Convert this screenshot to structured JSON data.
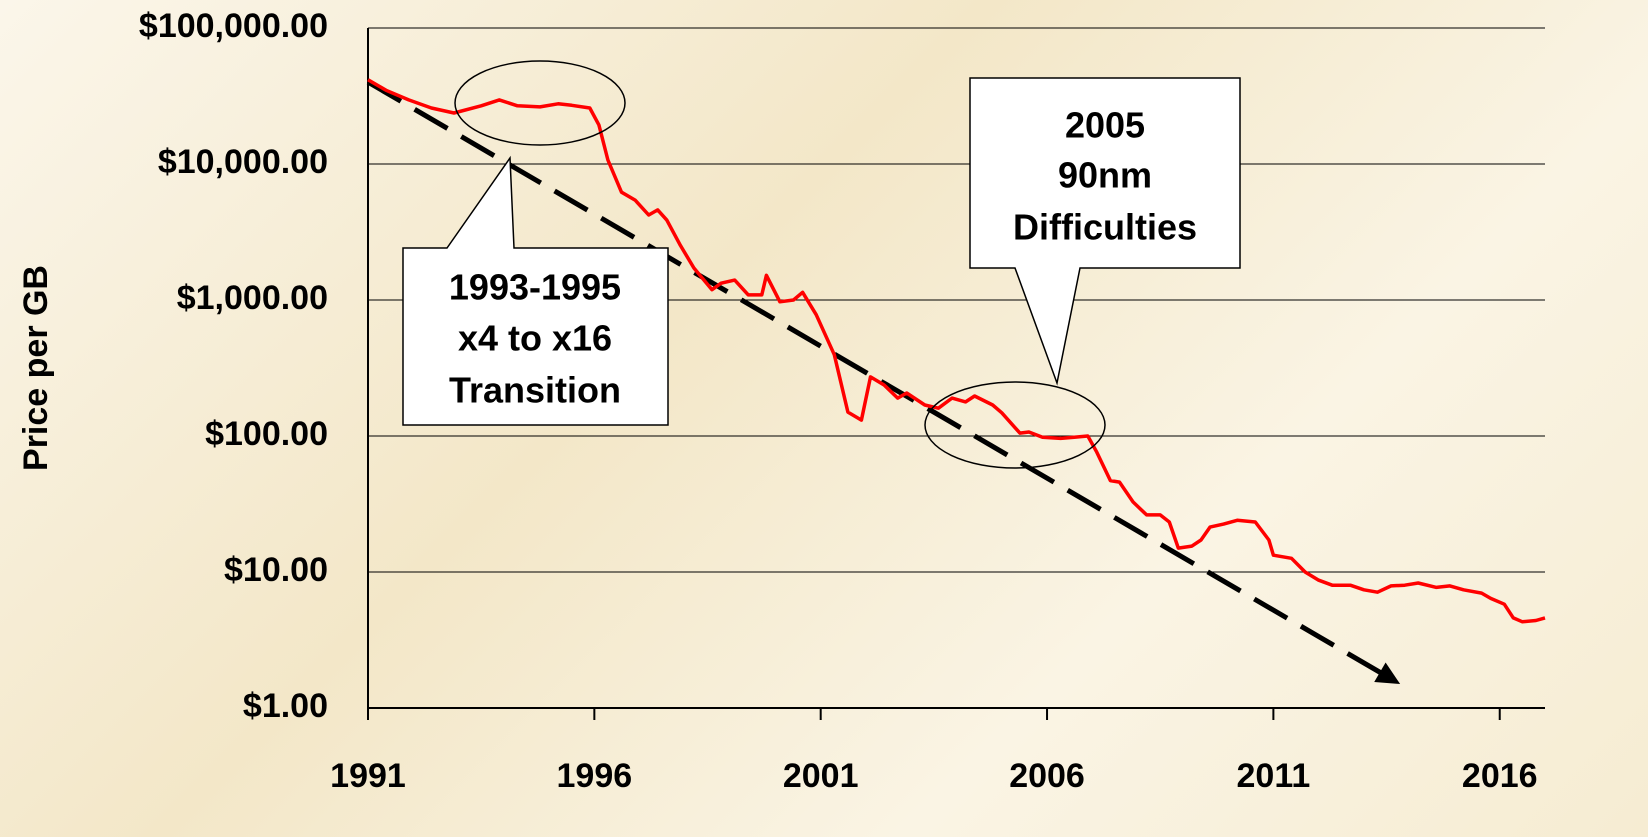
{
  "chart_data": {
    "type": "line",
    "ylabel": "Price per GB",
    "yscale": "log",
    "grid": true,
    "xlim": [
      1991,
      2017
    ],
    "ylim": [
      1,
      100000
    ],
    "xticks": [
      1991,
      1996,
      2001,
      2006,
      2011,
      2016
    ],
    "yticks": [
      {
        "value": 1,
        "label": "$1.00"
      },
      {
        "value": 10,
        "label": "$10.00"
      },
      {
        "value": 100,
        "label": "$100.00"
      },
      {
        "value": 1000,
        "label": "$1,000.00"
      },
      {
        "value": 10000,
        "label": "$10,000.00"
      },
      {
        "value": 100000,
        "label": "$100,000.00"
      }
    ],
    "x": [
      1991.0,
      1991.4,
      1991.9,
      1992.4,
      1992.9,
      1993.5,
      1993.9,
      1994.3,
      1994.8,
      1995.2,
      1995.5,
      1995.9,
      1996.1,
      1996.3,
      1996.6,
      1996.9,
      1997.2,
      1997.4,
      1997.6,
      1997.9,
      1998.2,
      1998.6,
      1998.8,
      1999.1,
      1999.4,
      1999.7,
      1999.8,
      2000.1,
      2000.4,
      2000.6,
      2000.9,
      2001.3,
      2001.6,
      2001.9,
      2002.1,
      2002.4,
      2002.7,
      2002.9,
      2003.3,
      2003.6,
      2003.9,
      2004.2,
      2004.4,
      2004.8,
      2005.0,
      2005.4,
      2005.6,
      2005.9,
      2006.3,
      2006.6,
      2006.9,
      2007.1,
      2007.4,
      2007.6,
      2007.9,
      2008.2,
      2008.5,
      2008.7,
      2008.9,
      2009.2,
      2009.4,
      2009.6,
      2009.9,
      2010.2,
      2010.6,
      2010.9,
      2011.0,
      2011.4,
      2011.7,
      2012.0,
      2012.3,
      2012.7,
      2013.0,
      2013.3,
      2013.6,
      2013.9,
      2014.2,
      2014.6,
      2014.9,
      2015.2,
      2015.6,
      2015.8,
      2016.1,
      2016.3,
      2016.5,
      2016.8,
      2017.0
    ],
    "series": [
      {
        "color": "#ff0000",
        "values": [
          41700,
          34800,
          29600,
          25800,
          23700,
          26800,
          29600,
          26800,
          26300,
          27700,
          27000,
          25800,
          19400,
          10700,
          6200,
          5430,
          4220,
          4600,
          3870,
          2520,
          1720,
          1190,
          1330,
          1400,
          1090,
          1090,
          1520,
          970,
          1000,
          1140,
          780,
          396,
          150,
          131,
          272,
          237,
          190,
          207,
          169,
          160,
          190,
          178,
          197,
          169,
          148,
          105,
          107,
          98,
          96,
          98,
          100,
          76,
          47,
          45.8,
          32.7,
          26.3,
          26.3,
          23.3,
          15,
          15.5,
          17.2,
          21.4,
          22.5,
          24,
          23.3,
          17.2,
          13.3,
          12.6,
          10,
          8.7,
          8.0,
          8.0,
          7.4,
          7.1,
          7.9,
          8.0,
          8.3,
          7.7,
          7.9,
          7.4,
          7.0,
          6.4,
          5.8,
          4.6,
          4.3,
          4.4,
          4.6
        ]
      }
    ],
    "trend": {
      "color": "#000000",
      "x": [
        1991,
        2013.8
      ],
      "values": [
        40000,
        1.5
      ]
    },
    "annotations": [
      {
        "lines": [
          "1993-1995",
          "x4 to x16",
          "Transition"
        ]
      },
      {
        "lines": [
          "2005",
          "90nm",
          "Difficulties"
        ]
      }
    ]
  }
}
